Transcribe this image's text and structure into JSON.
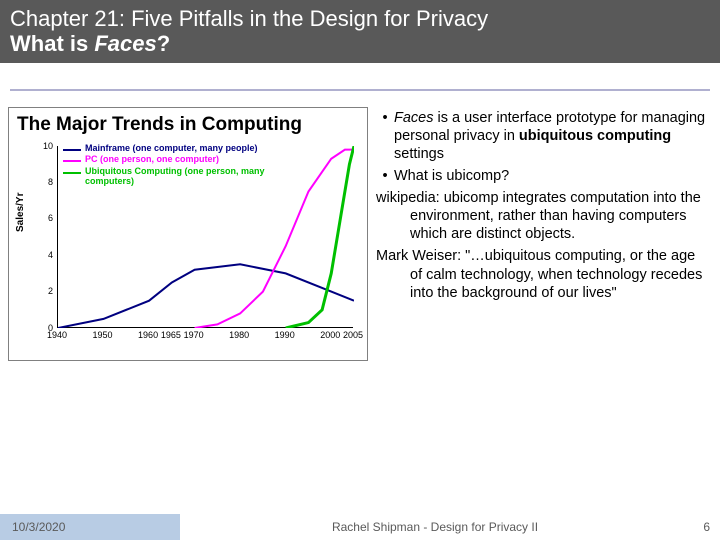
{
  "title": {
    "line1": "Chapter 21: Five Pitfalls in the Design for Privacy",
    "line2_prefix": "What is ",
    "line2_italic": "Faces",
    "line2_suffix": "?"
  },
  "chart": {
    "title": "The Major Trends in Computing",
    "ylabel": "Sales/Yr",
    "type": "line",
    "background_color": "#ffffff",
    "axis_color": "#000000",
    "xlim": [
      1940,
      2005
    ],
    "ylim": [
      0,
      10
    ],
    "xticks": [
      1940,
      1950,
      1960,
      1965,
      1970,
      1980,
      1990,
      2000,
      2005
    ],
    "xtick_labels": [
      "1940",
      "1950",
      "1960",
      "1965",
      "1970",
      "1980",
      "1990",
      "2000",
      "2005"
    ],
    "yticks": [
      0,
      2,
      4,
      6,
      8,
      10
    ],
    "series": [
      {
        "name": "mainframe",
        "color": "#000080",
        "width": 2,
        "label": "Mainframe (one computer, many people)",
        "points": [
          [
            1940,
            0
          ],
          [
            1950,
            0.5
          ],
          [
            1960,
            1.5
          ],
          [
            1965,
            2.5
          ],
          [
            1970,
            3.2
          ],
          [
            1980,
            3.5
          ],
          [
            1990,
            3.0
          ],
          [
            2000,
            2.0
          ],
          [
            2005,
            1.5
          ]
        ]
      },
      {
        "name": "pc",
        "color": "#ff00ff",
        "width": 2,
        "label": "PC (one person, one computer)",
        "points": [
          [
            1970,
            0
          ],
          [
            1975,
            0.2
          ],
          [
            1980,
            0.8
          ],
          [
            1985,
            2.0
          ],
          [
            1990,
            4.5
          ],
          [
            1995,
            7.5
          ],
          [
            2000,
            9.3
          ],
          [
            2003,
            9.8
          ],
          [
            2005,
            9.8
          ]
        ]
      },
      {
        "name": "ubicomp",
        "color": "#00c000",
        "width": 3,
        "label": "Ubiquitous Computing (one person, many computers)",
        "points": [
          [
            1990,
            0
          ],
          [
            1995,
            0.3
          ],
          [
            1998,
            1.0
          ],
          [
            2000,
            3.0
          ],
          [
            2002,
            6.0
          ],
          [
            2004,
            9.0
          ],
          [
            2005,
            10
          ]
        ]
      }
    ],
    "legend_fontsize": 9,
    "tick_fontsize": 9
  },
  "bullets": {
    "b1_pre": "",
    "b1_italic": "Faces",
    "b1_mid": " is a user interface prototype for managing personal privacy in ",
    "b1_bold": "ubiquitous computing",
    "b1_post": " settings",
    "b2": "What is ubicomp?",
    "p1": "wikipedia: ubicomp integrates computation into the environment, rather than having computers which are distinct objects.",
    "p2": "Mark Weiser: \"…ubiquitous computing, or the age of calm technology, when technology recedes into the background of our lives\""
  },
  "footer": {
    "date": "10/3/2020",
    "center": "Rachel Shipman - Design for Privacy II",
    "page": "6",
    "date_bg": "#b8cce4"
  }
}
